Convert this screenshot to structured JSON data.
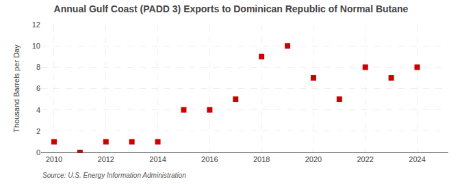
{
  "chart_data": {
    "type": "scatter",
    "title": "Annual Gulf Coast (PADD 3) Exports to Dominican Republic of Normal Butane",
    "ylabel": "Thousand Barrels per Day",
    "annotations": [
      "Source: U.S. Energy Information Administration"
    ],
    "x": [
      2010,
      2011,
      2012,
      2013,
      2014,
      2015,
      2016,
      2017,
      2018,
      2019,
      2020,
      2021,
      2022,
      2023,
      2024
    ],
    "values": [
      1,
      0,
      1,
      1,
      1,
      4,
      4,
      5,
      9,
      10,
      7,
      5,
      8,
      7,
      8
    ],
    "color": "#cc0000",
    "marker": "square",
    "xlim": [
      2009.5,
      2025.2
    ],
    "xticks": [
      2010,
      2012,
      2014,
      2016,
      2018,
      2020,
      2022,
      2024
    ],
    "ylim": [
      0,
      12
    ],
    "yticks": [
      0,
      2,
      4,
      6,
      8,
      10,
      12
    ],
    "grid": true
  }
}
